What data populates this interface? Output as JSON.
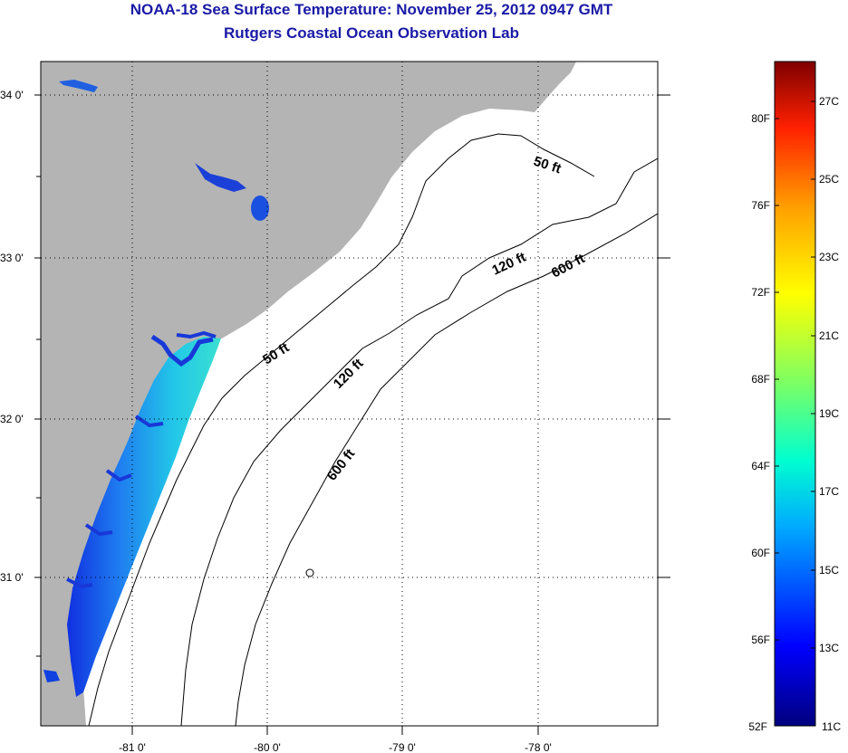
{
  "title": "NOAA-18 Sea Surface Temperature:  November 25, 2012 0947 GMT",
  "subtitle": "Rutgers Coastal Ocean Observation Lab",
  "map": {
    "lat_ticks": [
      "34 0'",
      "33 0'",
      "32 0'",
      "31 0'"
    ],
    "lon_ticks": [
      "-81 0'",
      "-80 0'",
      "-79 0'",
      "-78 0'"
    ],
    "contour_labels": [
      "50 ft",
      "120 ft",
      "600 ft",
      "50 ft",
      "120 ft",
      "600 ft"
    ],
    "colors": {
      "land": "#b4b4b4",
      "ocean": "#ffffff",
      "frame": "#000000"
    }
  },
  "colorbar": {
    "fahrenheit_labels": [
      "80F",
      "76F",
      "72F",
      "68F",
      "64F",
      "60F",
      "56F",
      "52F"
    ],
    "celsius_labels": [
      "27C",
      "25C",
      "23C",
      "21C",
      "19C",
      "17C",
      "15C",
      "13C",
      "11C"
    ],
    "colors": [
      "#00007f",
      "#0000ff",
      "#00aaff",
      "#00ffd0",
      "#80ff60",
      "#ffff00",
      "#ffa000",
      "#ff2000",
      "#7f0000"
    ]
  }
}
